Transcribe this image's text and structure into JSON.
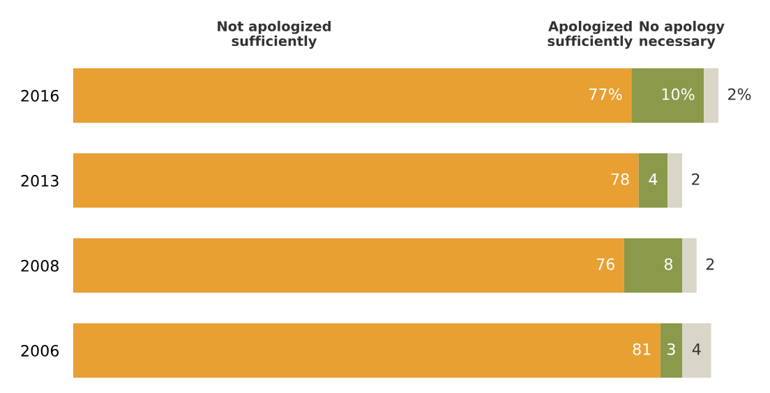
{
  "chart_data": {
    "type": "bar",
    "orientation": "horizontal",
    "stacked": true,
    "categories": [
      "2016",
      "2013",
      "2008",
      "2006"
    ],
    "series": [
      {
        "name": "Not apologized sufficiently",
        "color": "#e8a033",
        "values": [
          77,
          78,
          76,
          81
        ],
        "value_labels": [
          "77%",
          "78",
          "76",
          "81"
        ]
      },
      {
        "name": "Apologized sufficiently",
        "color": "#8a9a4a",
        "values": [
          10,
          4,
          8,
          3
        ],
        "value_labels": [
          "10%",
          "4",
          "8",
          "3"
        ]
      },
      {
        "name": "No apology necessary",
        "color": "#d9d6c7",
        "values": [
          2,
          2,
          2,
          4
        ],
        "value_labels": [
          "2%",
          "2",
          "2",
          "4"
        ]
      }
    ]
  }
}
